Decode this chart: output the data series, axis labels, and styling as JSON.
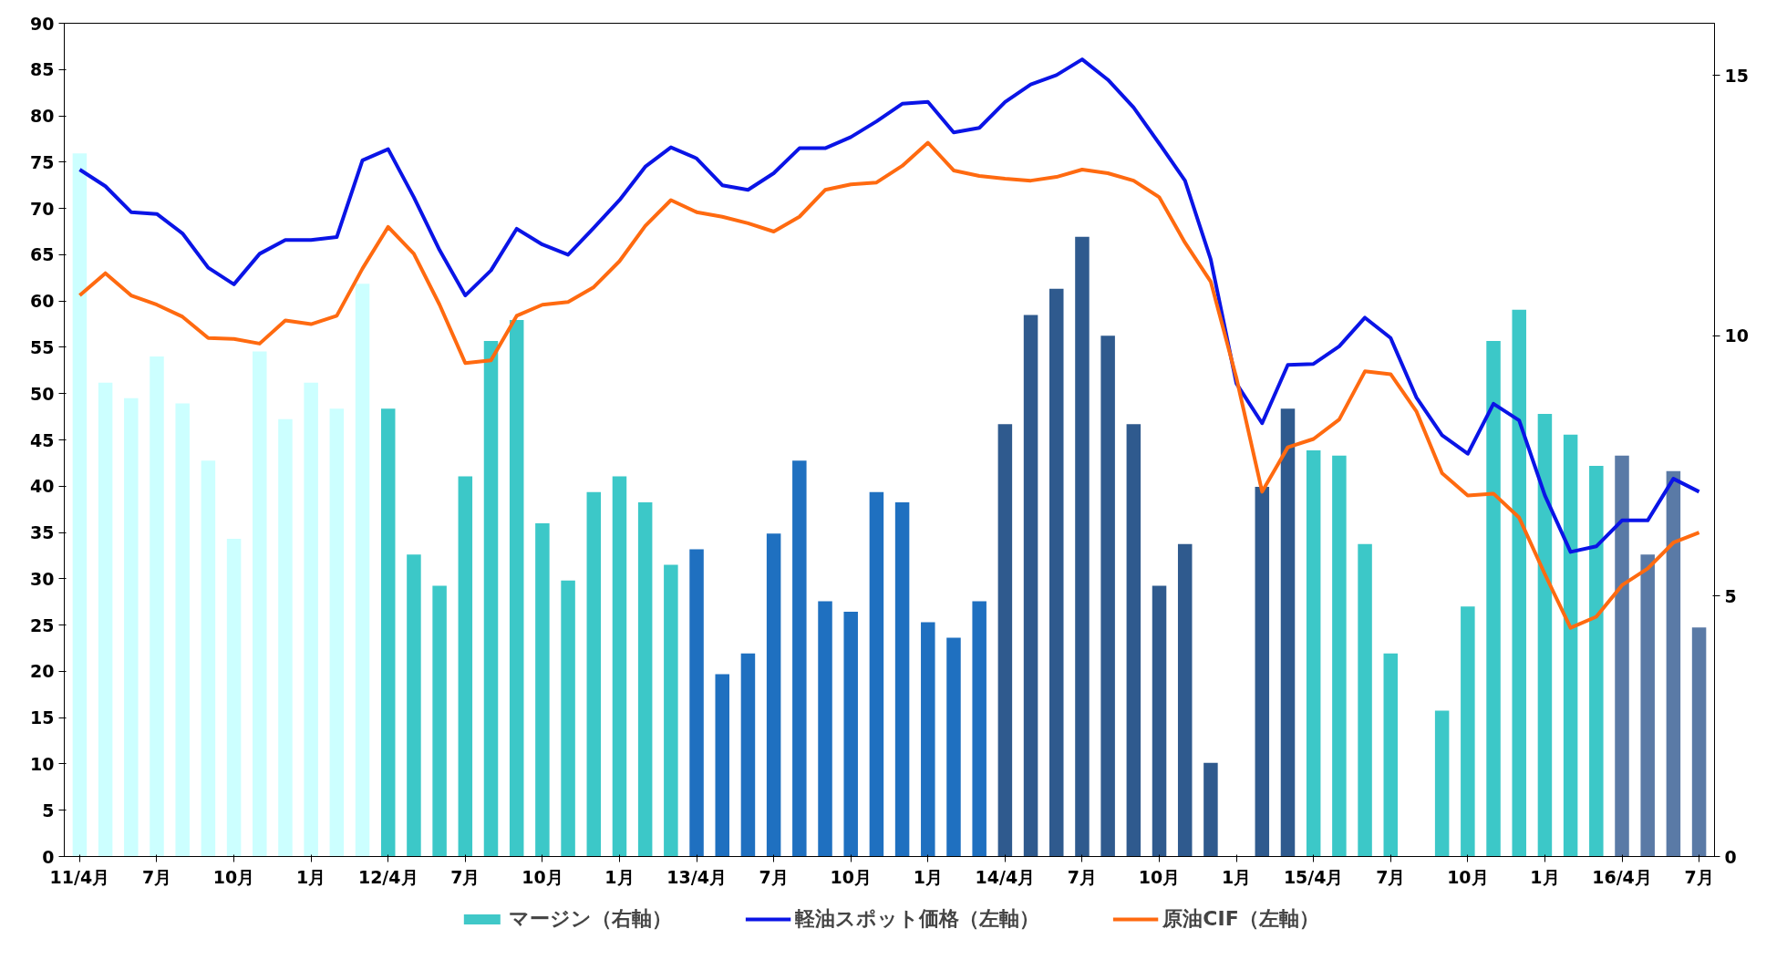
{
  "chart_data": {
    "type": "bar",
    "categories": [
      "11/4月",
      null,
      null,
      "7月",
      null,
      null,
      "10月",
      null,
      null,
      "1月",
      null,
      null,
      "12/4月",
      null,
      null,
      "7月",
      null,
      null,
      "10月",
      null,
      null,
      "1月",
      null,
      null,
      "13/4月",
      null,
      null,
      "7月",
      null,
      null,
      "10月",
      null,
      null,
      "1月",
      null,
      null,
      "14/4月",
      null,
      null,
      "7月",
      null,
      null,
      "10月",
      null,
      null,
      "1月",
      null,
      null,
      "15/4月",
      null,
      null,
      "7月",
      null,
      null,
      "10月",
      null,
      null,
      "1月",
      null,
      null,
      "16/4月",
      null,
      null,
      "7月"
    ],
    "series": [
      {
        "name": "マージン（右軸）",
        "axis": "y2",
        "color": "#40c8c8",
        "colors": [
          "#ccffff",
          "#ccffff",
          "#ccffff",
          "#ccffff",
          "#ccffff",
          "#ccffff",
          "#ccffff",
          "#ccffff",
          "#ccffff",
          "#ccffff",
          "#ccffff",
          "#ccffff",
          "#3cc8c8",
          "#3cc8c8",
          "#3cc8c8",
          "#3cc8c8",
          "#3cc8c8",
          "#3cc8c8",
          "#3cc8c8",
          "#3cc8c8",
          "#3cc8c8",
          "#3cc8c8",
          "#3cc8c8",
          "#3cc8c8",
          "#1f70c0",
          "#1f70c0",
          "#1f70c0",
          "#1f70c0",
          "#1f70c0",
          "#1f70c0",
          "#1f70c0",
          "#1f70c0",
          "#1f70c0",
          "#1f70c0",
          "#1f70c0",
          "#1f70c0",
          "#2f5a8e",
          "#2f5a8e",
          "#2f5a8e",
          "#2f5a8e",
          "#2f5a8e",
          "#2f5a8e",
          "#2f5a8e",
          "#2f5a8e",
          "#2f5a8e",
          "#2f5a8e",
          "#2f5a8e",
          "#2f5a8e",
          "#3cc8c8",
          "#3cc8c8",
          "#3cc8c8",
          "#3cc8c8",
          "#3cc8c8",
          "#3cc8c8",
          "#3cc8c8",
          "#3cc8c8",
          "#3cc8c8",
          "#3cc8c8",
          "#3cc8c8",
          "#3cc8c8",
          "#5a7aa6",
          "#5a7aa6",
          "#5a7aa6",
          "#5a7aa6"
        ],
        "values": [
          13.5,
          9.1,
          8.8,
          9.6,
          8.7,
          7.6,
          6.1,
          9.7,
          8.4,
          9.1,
          8.6,
          11.0,
          8.6,
          5.8,
          5.2,
          7.3,
          9.9,
          10.3,
          6.4,
          5.3,
          7.0,
          7.3,
          6.8,
          5.6,
          5.9,
          3.5,
          3.9,
          6.2,
          7.6,
          4.9,
          4.7,
          7.0,
          6.8,
          4.5,
          4.2,
          4.9,
          8.3,
          10.4,
          10.9,
          11.9,
          10.0,
          8.3,
          5.2,
          6.0,
          1.8,
          0.0,
          7.1,
          8.6,
          7.8,
          7.7,
          6.0,
          3.9,
          0.0,
          2.8,
          4.8,
          9.9,
          10.5,
          8.5,
          8.1,
          7.5,
          7.7,
          5.8,
          7.4,
          4.4
        ]
      },
      {
        "name": "軽油スポット価格（左軸）",
        "type": "line",
        "color": "#0a14e6",
        "values": [
          74.2,
          72.4,
          69.6,
          69.4,
          67.3,
          63.6,
          61.8,
          65.1,
          66.6,
          66.6,
          66.9,
          75.2,
          76.4,
          71.2,
          65.5,
          60.6,
          63.3,
          67.8,
          66.1,
          65.0,
          67.9,
          70.9,
          74.5,
          76.6,
          75.4,
          72.5,
          72.0,
          73.8,
          76.5,
          76.5,
          77.7,
          79.4,
          81.3,
          81.5,
          78.2,
          78.7,
          81.5,
          83.4,
          84.4,
          86.1,
          83.9,
          80.9,
          77.0,
          73.0,
          64.5,
          51.1,
          46.8,
          53.1,
          53.2,
          55.1,
          58.2,
          56.0,
          49.6,
          45.5,
          43.5,
          48.9,
          47.1,
          39.0,
          32.9,
          33.5,
          36.3,
          36.3,
          40.8,
          39.4
        ]
      },
      {
        "name": "原油CIF（左軸）",
        "type": "line",
        "color": "#ff6a10",
        "values": [
          60.6,
          63.0,
          60.6,
          59.6,
          58.3,
          56.0,
          55.9,
          55.4,
          57.9,
          57.5,
          58.4,
          63.5,
          68.0,
          65.1,
          59.6,
          53.3,
          53.6,
          58.4,
          59.6,
          59.9,
          61.5,
          64.3,
          68.1,
          70.9,
          69.6,
          69.1,
          68.4,
          67.5,
          69.1,
          72.0,
          72.6,
          72.8,
          74.6,
          77.1,
          74.1,
          73.5,
          73.2,
          73.0,
          73.4,
          74.2,
          73.8,
          73.0,
          71.2,
          66.3,
          62.1,
          51.7,
          39.4,
          44.2,
          45.1,
          47.2,
          52.4,
          52.1,
          48.1,
          41.4,
          39.0,
          39.2,
          36.6,
          30.5,
          24.7,
          25.9,
          29.3,
          31.1,
          33.9,
          35.0
        ]
      }
    ],
    "ylim": [
      0,
      90
    ],
    "yticks": [
      0,
      5,
      10,
      15,
      20,
      25,
      30,
      35,
      40,
      45,
      50,
      55,
      60,
      65,
      70,
      75,
      80,
      85,
      90
    ],
    "y2lim": [
      0,
      16
    ],
    "y2ticks": [
      0,
      5,
      10,
      15
    ],
    "grid": false,
    "legend": "bottom",
    "line_style": "solid",
    "marker": "none"
  }
}
